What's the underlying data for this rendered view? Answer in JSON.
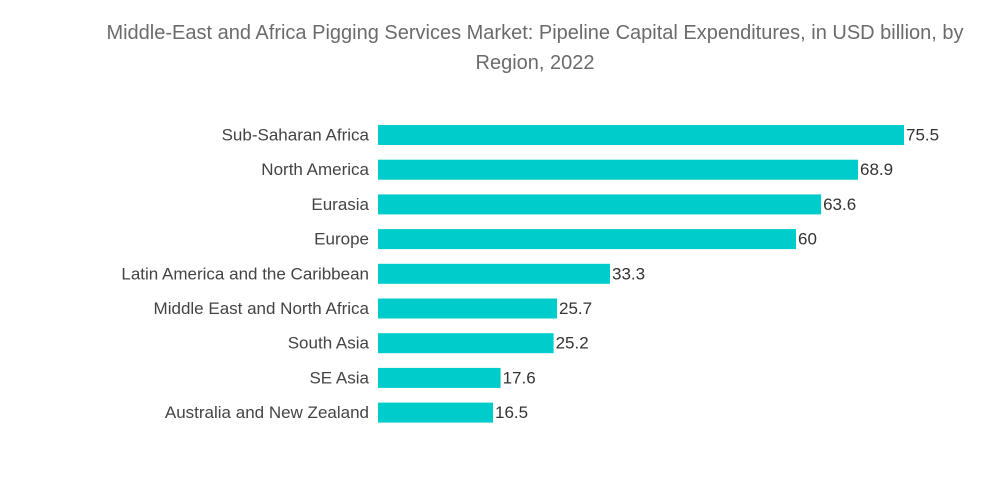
{
  "chart_data": {
    "type": "bar",
    "orientation": "horizontal",
    "title": "Middle-East and Africa Pigging Services Market: Pipeline Capital Expenditures, in USD billion, by Region, 2022",
    "xlabel": "",
    "ylabel": "",
    "categories": [
      "Sub-Saharan Africa",
      "North America",
      "Eurasia",
      "Europe",
      "Latin America and the Caribbean",
      "Middle East and North Africa",
      "South Asia",
      "SE Asia",
      "Australia and New Zealand"
    ],
    "values": [
      75.5,
      68.9,
      63.6,
      60,
      33.3,
      25.7,
      25.2,
      17.6,
      16.5
    ],
    "value_labels": [
      "75.5",
      "68.9",
      "63.6",
      "60",
      "33.3",
      "25.7",
      "25.2",
      "17.6",
      "16.5"
    ],
    "xlim": [
      0,
      75.5
    ],
    "grid": false,
    "legend": "none",
    "bar_color": "#00cccc"
  }
}
